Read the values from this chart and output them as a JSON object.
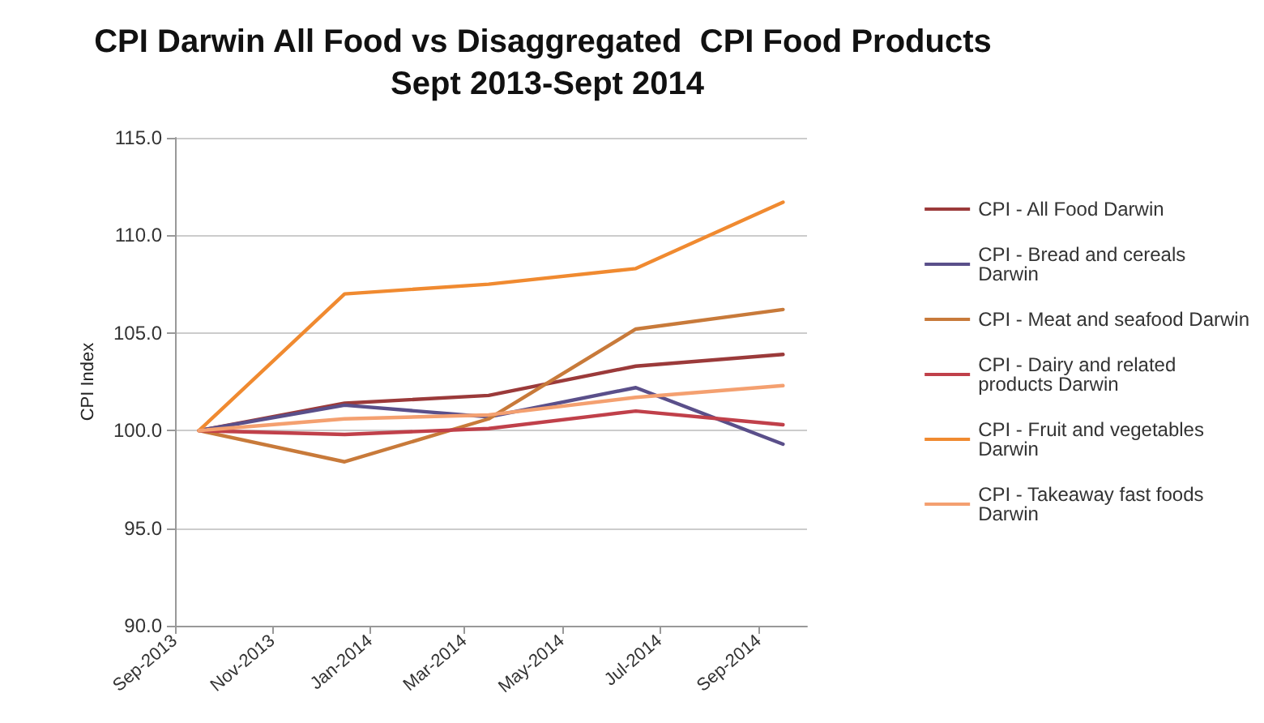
{
  "chart_data": {
    "type": "line",
    "title": "CPI Darwin All Food vs Disaggregated  CPI Food Products Sept 2013-Sept 2014",
    "ylabel": "CPI Index",
    "x": [
      "2013-09-16",
      "2013-12-16",
      "2014-03-16",
      "2014-06-16",
      "2014-09-16"
    ],
    "series": [
      {
        "name": "CPI - All Food Darwin",
        "color": "#9b3a3a",
        "values": [
          100,
          101.4,
          101.8,
          103.3,
          103.9
        ]
      },
      {
        "name": "CPI - Bread and cereals Darwin",
        "color": "#5a4f8a",
        "values": [
          100,
          101.3,
          100.7,
          102.2,
          99.3
        ]
      },
      {
        "name": "CPI - Meat and seafood Darwin",
        "color": "#c87a3a",
        "values": [
          100,
          98.4,
          100.6,
          105.2,
          106.2
        ]
      },
      {
        "name": "CPI - Dairy and related products Darwin",
        "color": "#c0404a",
        "values": [
          100,
          99.8,
          100.1,
          101.0,
          100.3
        ]
      },
      {
        "name": "CPI - Fruit and vegetables Darwin",
        "color": "#f08a30",
        "values": [
          100,
          107.0,
          107.5,
          108.3,
          111.7
        ]
      },
      {
        "name": "CPI - Takeaway fast foods Darwin",
        "color": "#f4a070",
        "values": [
          100,
          100.6,
          100.8,
          101.7,
          102.3
        ]
      }
    ],
    "xlim": [
      "2013-09-01",
      "2014-10-01"
    ],
    "xticks": [
      {
        "value": "2013-09-01",
        "label": "Sep-2013"
      },
      {
        "value": "2013-11-01",
        "label": "Nov-2013"
      },
      {
        "value": "2014-01-01",
        "label": "Jan-2014"
      },
      {
        "value": "2014-03-01",
        "label": "Mar-2014"
      },
      {
        "value": "2014-05-01",
        "label": "May-2014"
      },
      {
        "value": "2014-07-01",
        "label": "Jul-2014"
      },
      {
        "value": "2014-09-01",
        "label": "Sep-2014"
      }
    ],
    "ylim": [
      90,
      115
    ],
    "yticks": [
      {
        "value": 90,
        "label": "90.0"
      },
      {
        "value": 95,
        "label": "95.0"
      },
      {
        "value": 100,
        "label": "100.0"
      },
      {
        "value": 105,
        "label": "105.0"
      },
      {
        "value": 110,
        "label": "110.0"
      },
      {
        "value": 115,
        "label": "115.0"
      }
    ],
    "grid": "y",
    "legend": "right",
    "marker": "none",
    "line_style": "solid"
  }
}
